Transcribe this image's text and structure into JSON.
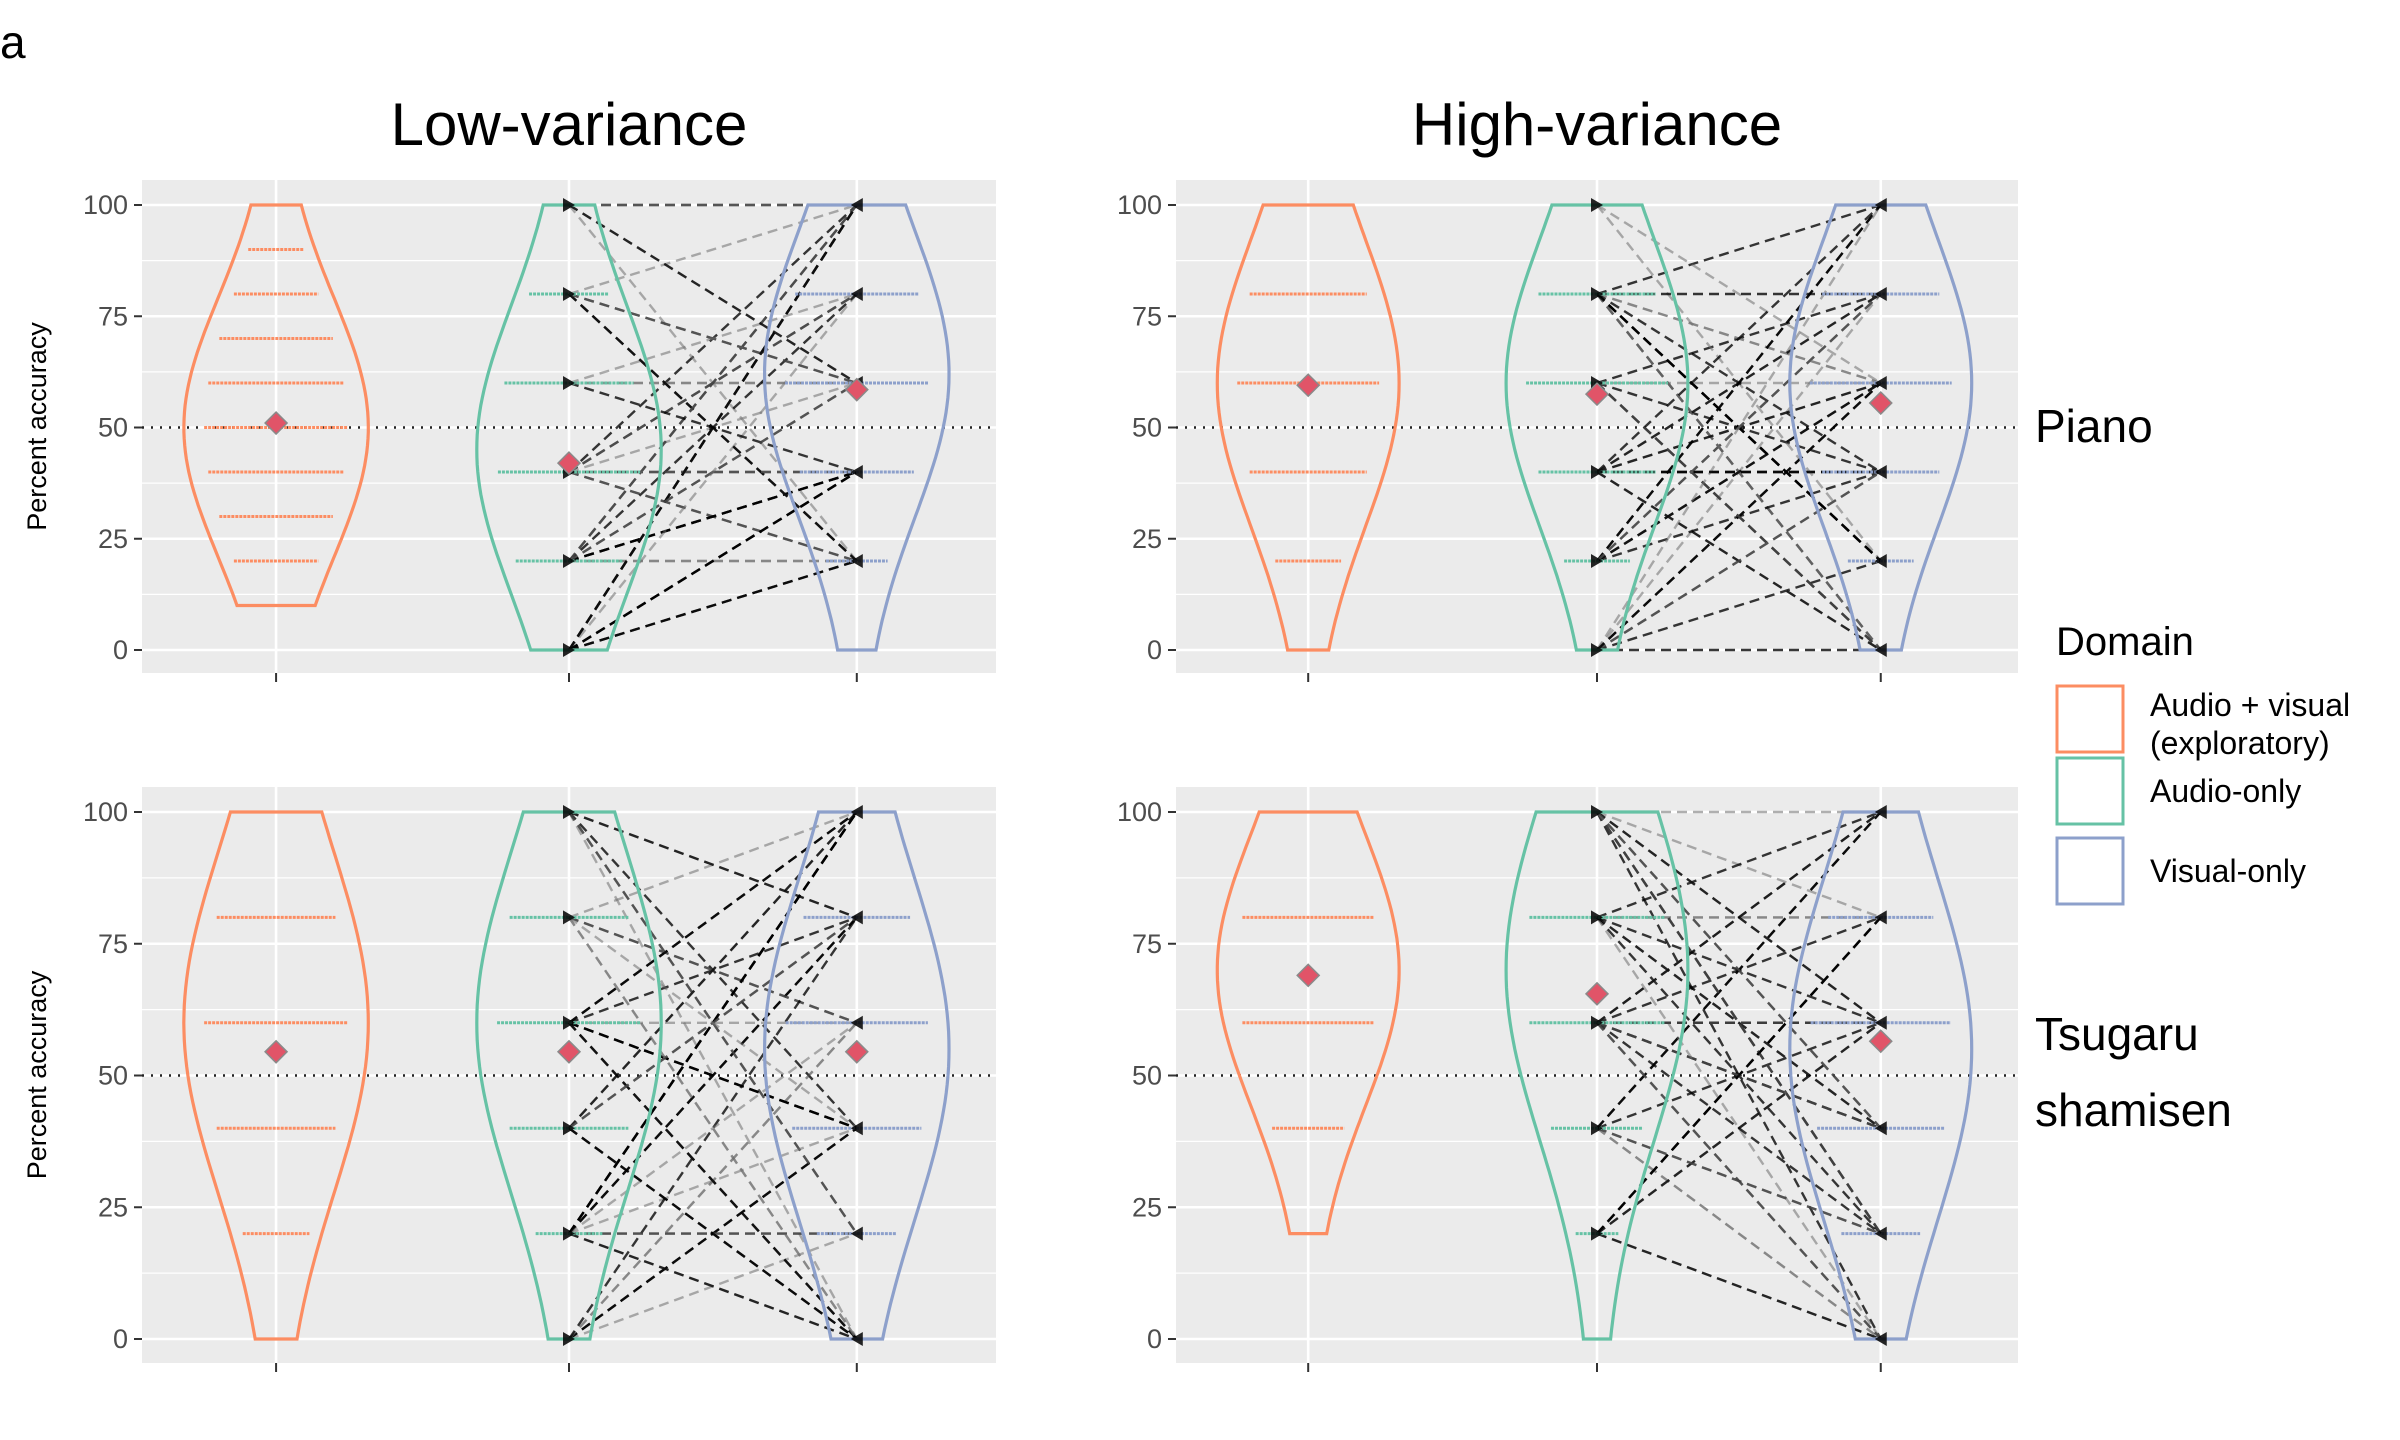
{
  "panel_label": "a",
  "chart_data": {
    "type": "violin",
    "columns": [
      "Low-variance",
      "High-variance"
    ],
    "rows": [
      "Piano",
      "Tsugaru shamisen"
    ],
    "ylabel": "Percent accuracy",
    "ylim": [
      0,
      100
    ],
    "yticks": [
      0,
      25,
      50,
      75,
      100
    ],
    "reference_line": 50,
    "legend": {
      "title": "Domain",
      "entries": [
        {
          "label": "Audio + visual (exploratory)",
          "lines": [
            "Audio + visual",
            "(exploratory)"
          ],
          "color": "#FC8D62"
        },
        {
          "label": "Audio-only",
          "lines": [
            "Audio-only"
          ],
          "color": "#66C2A5"
        },
        {
          "label": "Visual-only",
          "lines": [
            "Visual-only"
          ],
          "color": "#8DA0CB"
        }
      ]
    },
    "mean_marker_color": "#E15468",
    "panels": [
      {
        "column": "Low-variance",
        "row": "Piano",
        "groups": [
          {
            "domain": "Audio + visual (exploratory)",
            "mean": 51,
            "range": [
              10,
              100
            ],
            "peak": 50,
            "score_levels": [
              20,
              30,
              40,
              50,
              60,
              70,
              80,
              90
            ]
          },
          {
            "domain": "Audio-only",
            "mean": 42,
            "range": [
              0,
              100
            ],
            "peak": 45,
            "score_levels": [
              0,
              20,
              40,
              60,
              80,
              100
            ]
          },
          {
            "domain": "Visual-only",
            "mean": 58.5,
            "range": [
              0,
              100
            ],
            "peak": 62,
            "score_levels": [
              20,
              40,
              60,
              80,
              100
            ]
          }
        ]
      },
      {
        "column": "High-variance",
        "row": "Piano",
        "groups": [
          {
            "domain": "Audio + visual (exploratory)",
            "mean": 59.5,
            "range": [
              0,
              100
            ],
            "peak": 60,
            "score_levels": [
              20,
              40,
              60,
              80
            ]
          },
          {
            "domain": "Audio-only",
            "mean": 57.5,
            "range": [
              0,
              100
            ],
            "peak": 60,
            "score_levels": [
              0,
              20,
              40,
              60,
              80,
              100
            ]
          },
          {
            "domain": "Visual-only",
            "mean": 55.5,
            "range": [
              0,
              100
            ],
            "peak": 60,
            "score_levels": [
              0,
              20,
              40,
              60,
              80,
              100
            ]
          }
        ]
      },
      {
        "column": "Low-variance",
        "row": "Tsugaru shamisen",
        "groups": [
          {
            "domain": "Audio + visual (exploratory)",
            "mean": 54.5,
            "range": [
              0,
              100
            ],
            "peak": 60,
            "score_levels": [
              20,
              40,
              60,
              80
            ]
          },
          {
            "domain": "Audio-only",
            "mean": 54.5,
            "range": [
              0,
              100
            ],
            "peak": 60,
            "score_levels": [
              0,
              20,
              40,
              60,
              80,
              100
            ]
          },
          {
            "domain": "Visual-only",
            "mean": 54.5,
            "range": [
              0,
              100
            ],
            "peak": 55,
            "score_levels": [
              0,
              20,
              40,
              60,
              80,
              100
            ]
          }
        ]
      },
      {
        "column": "High-variance",
        "row": "Tsugaru shamisen",
        "groups": [
          {
            "domain": "Audio + visual (exploratory)",
            "mean": 69,
            "range": [
              20,
              100
            ],
            "peak": 70,
            "score_levels": [
              40,
              60,
              80
            ]
          },
          {
            "domain": "Audio-only",
            "mean": 65.5,
            "range": [
              0,
              100
            ],
            "peak": 70,
            "score_levels": [
              20,
              40,
              60,
              80,
              100
            ]
          },
          {
            "domain": "Visual-only",
            "mean": 56.5,
            "range": [
              0,
              100
            ],
            "peak": 55,
            "score_levels": [
              0,
              20,
              40,
              60,
              80,
              100
            ]
          }
        ]
      }
    ]
  }
}
